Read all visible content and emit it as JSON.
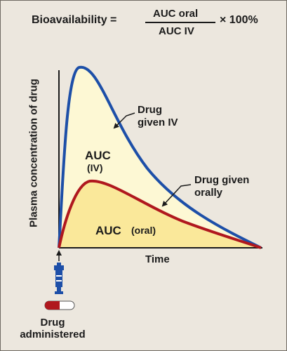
{
  "formula": {
    "label": "Bioavailability =",
    "numerator": "AUC oral",
    "denominator": "AUC IV",
    "tail": "× 100%"
  },
  "axes": {
    "ylabel": "Plasma concentration of drug",
    "xlabel": "Time"
  },
  "annotations": {
    "iv_line1": "Drug",
    "iv_line2": "given IV",
    "oral_line1": "Drug given",
    "oral_line2": "orally",
    "auc_iv_1": "AUC",
    "auc_iv_2": "(IV)",
    "auc_oral_1": "AUC",
    "auc_oral_2": "(oral)",
    "admin_line1": "Drug",
    "admin_line2": "administered"
  },
  "colors": {
    "iv_curve": "#1d4fa8",
    "oral_curve": "#b0181e",
    "iv_fill": "#fdf8d4",
    "oral_fill": "#fae89a",
    "panel": "#ece7de"
  },
  "icons": [
    "syringe-icon",
    "capsule-icon",
    "arrow-icon"
  ]
}
